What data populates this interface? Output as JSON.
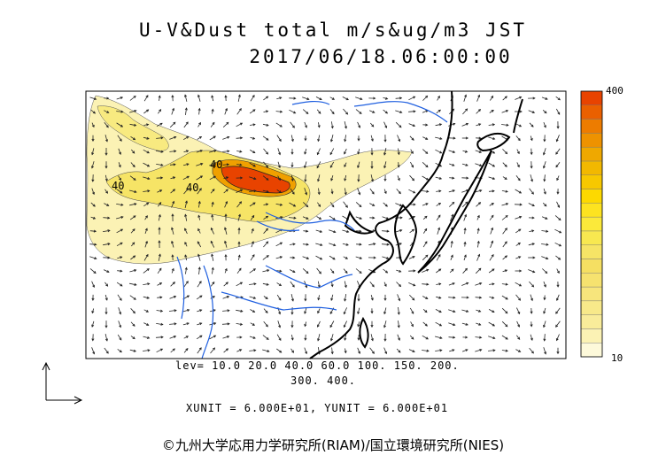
{
  "header": {
    "title": "U-V&Dust total m/s&ug/m3 JST",
    "datetime": "2017/06/18.06:00:00"
  },
  "map": {
    "contour_labels": [
      "40",
      "40",
      "40"
    ],
    "colors": {
      "ocean": "#ffffff",
      "dust_low": "#fbf2b4",
      "dust_mid": "#f6e466",
      "dust_high": "#f0a000",
      "dust_peak": "#e84300",
      "coast": "#000000",
      "river": "#2060e0"
    }
  },
  "colorbar": {
    "max_label": "400",
    "min_label": "10",
    "colors": [
      "#fdf9da",
      "#fbf2b4",
      "#f9ec9a",
      "#f8e98a",
      "#f7e57c",
      "#f6e26f",
      "#f5df62",
      "#f6e466",
      "#f8e850",
      "#fbe93a",
      "#fde320",
      "#fdd900",
      "#f7c800",
      "#f2b800",
      "#efa800",
      "#ee9200",
      "#ed7c00",
      "#ea6000",
      "#e84300"
    ]
  },
  "footer": {
    "levels_line1": "lev= 10.0 20.0 40.0 60.0 100. 150. 200.",
    "levels_line2": "300. 400.",
    "units": "XUNIT = 6.000E+01, YUNIT = 6.000E+01",
    "credit": "©九州大学応用力学研究所(RIAM)/国立環境研究所(NIES)"
  }
}
